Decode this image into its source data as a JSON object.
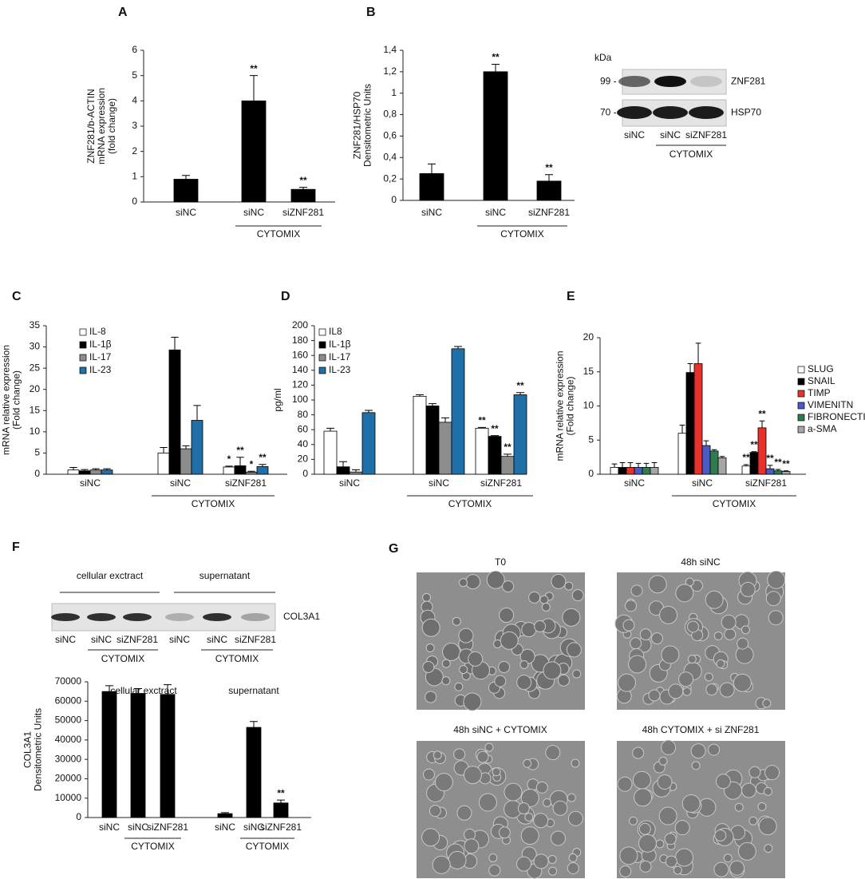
{
  "chart_data": [
    {
      "type": "bar",
      "panel": "A",
      "ylabel": [
        "ZNF281/b-ACTIN",
        "mRNA expression",
        "(fold change)"
      ],
      "categories": [
        "siNC",
        "siNC",
        "siZNF281"
      ],
      "values": [
        0.9,
        4.0,
        0.5
      ],
      "errors": [
        0.15,
        1.0,
        0.08
      ],
      "annotations": [
        null,
        "**",
        "**"
      ],
      "color": "#000000",
      "ylim": [
        0,
        6
      ],
      "yticks": [
        0,
        1,
        2,
        3,
        4,
        5,
        6
      ],
      "group_labels": [
        "CYTOMIX"
      ]
    },
    {
      "type": "bar",
      "panel": "B",
      "ylabel": [
        "ZNF281/HSP70",
        "Densitometric Units"
      ],
      "categories": [
        "siNC",
        "siNC",
        "siZNF281"
      ],
      "values": [
        0.25,
        1.2,
        0.18
      ],
      "errors": [
        0.09,
        0.07,
        0.06
      ],
      "annotations": [
        null,
        "**",
        "**"
      ],
      "color": "#000000",
      "ylim": [
        0,
        1.4
      ],
      "yticks": [
        0,
        {
          "value": 0.2,
          "label": "0,2"
        },
        {
          "value": 0.4,
          "label": "0,4"
        },
        {
          "value": 0.6,
          "label": "0,6"
        },
        {
          "value": 0.8,
          "label": "0,8"
        },
        1,
        {
          "value": 1.2,
          "label": "1,2"
        },
        {
          "value": 1.4,
          "label": "1,4"
        }
      ],
      "group_labels": [
        "CYTOMIX"
      ]
    },
    {
      "type": "grouped-bar",
      "panel": "C",
      "ylabel": [
        "mRNA relative expression",
        "(Fold change)"
      ],
      "categories": [
        "siNC",
        "siNC",
        "siZNF281"
      ],
      "series": [
        {
          "name": "IL-8",
          "color": "#ffffff",
          "values": [
            1,
            5,
            1.7
          ],
          "errors": [
            0.6,
            1.3,
            0.2
          ],
          "annotations": [
            null,
            null,
            "*"
          ]
        },
        {
          "name": "IL-1β",
          "color": "#000000",
          "values": [
            0.8,
            29.3,
            2
          ],
          "errors": [
            0.3,
            3,
            2
          ],
          "annotations": [
            null,
            null,
            "**"
          ]
        },
        {
          "name": "IL-17",
          "color": "#8c8c8c",
          "values": [
            1,
            6,
            0.5
          ],
          "errors": [
            0.3,
            0.7,
            0.2
          ],
          "annotations": [
            null,
            null,
            "*"
          ]
        },
        {
          "name": "IL-23",
          "color": "#1f6fa8",
          "values": [
            1,
            12.7,
            1.8
          ],
          "errors": [
            0.3,
            3.5,
            0.5
          ],
          "annotations": [
            null,
            null,
            "**"
          ]
        }
      ],
      "ylim": [
        0,
        35
      ],
      "yticks": [
        0,
        5,
        10,
        15,
        20,
        25,
        30,
        35
      ],
      "group_labels": [
        "CYTOMIX"
      ]
    },
    {
      "type": "grouped-bar",
      "panel": "D",
      "ylabel": [
        "pg/ml"
      ],
      "categories": [
        "siNC",
        "siNC",
        "siZNF281"
      ],
      "series": [
        {
          "name": "IL8",
          "color": "#ffffff",
          "values": [
            58,
            105,
            62
          ],
          "errors": [
            4,
            2,
            1
          ],
          "annotations": [
            null,
            null,
            "**"
          ]
        },
        {
          "name": "IL-1β",
          "color": "#000000",
          "values": [
            10,
            92,
            51
          ],
          "errors": [
            7,
            3,
            1
          ],
          "annotations": [
            null,
            null,
            "**"
          ]
        },
        {
          "name": "IL-17",
          "color": "#8c8c8c",
          "values": [
            3,
            70,
            24
          ],
          "errors": [
            3,
            6,
            3
          ],
          "annotations": [
            null,
            null,
            "**"
          ]
        },
        {
          "name": "IL-23",
          "color": "#1f6fa8",
          "values": [
            83,
            169,
            107
          ],
          "errors": [
            3,
            3,
            3
          ],
          "annotations": [
            null,
            null,
            "**"
          ]
        }
      ],
      "ylim": [
        0,
        200
      ],
      "yticks": [
        0,
        20,
        40,
        60,
        80,
        100,
        120,
        140,
        160,
        180,
        200
      ],
      "group_labels": [
        "CYTOMIX"
      ]
    },
    {
      "type": "grouped-bar",
      "panel": "E",
      "ylabel": [
        "mRNA relative expression",
        "(Fold change)"
      ],
      "categories": [
        "siNC",
        "siNC",
        "siZNF281"
      ],
      "series": [
        {
          "name": "SLUG",
          "color": "#ffffff",
          "values": [
            1,
            6,
            1.2
          ],
          "errors": [
            0.5,
            1.2,
            0.2
          ],
          "annotations": [
            null,
            null,
            "**"
          ]
        },
        {
          "name": "SNAIL",
          "color": "#000000",
          "values": [
            1,
            14.9,
            3.2
          ],
          "errors": [
            0.7,
            1.3,
            0.1
          ],
          "annotations": [
            null,
            null,
            "**"
          ]
        },
        {
          "name": "TIMP",
          "color": "#e8312a",
          "values": [
            1,
            16.2,
            6.8
          ],
          "errors": [
            0.7,
            3,
            1
          ],
          "annotations": [
            null,
            null,
            "**"
          ]
        },
        {
          "name": "VIMENITN",
          "color": "#4a5bc4",
          "values": [
            1,
            4.2,
            0.8
          ],
          "errors": [
            0.6,
            0.7,
            0.5
          ],
          "annotations": [
            null,
            null,
            "**"
          ]
        },
        {
          "name": "FIBRONECTIN",
          "color": "#2f7d4e",
          "values": [
            1,
            3.4,
            0.5
          ],
          "errors": [
            0.6,
            0.2,
            0.2
          ],
          "annotations": [
            null,
            null,
            "**"
          ]
        },
        {
          "name": "a-SMA",
          "color": "#a6a6a6",
          "values": [
            1,
            2.4,
            0.4
          ],
          "errors": [
            0.7,
            0.2,
            0.1
          ],
          "annotations": [
            null,
            null,
            "**"
          ]
        }
      ],
      "ylim": [
        0,
        20
      ],
      "yticks": [
        0,
        5,
        10,
        15,
        20
      ],
      "group_labels": [
        "CYTOMIX"
      ]
    },
    {
      "type": "bar",
      "ylabel": [
        "COL3A1",
        "Densitometric Units"
      ],
      "section_titles": [
        "cellular exctract",
        "supernatant"
      ],
      "categories": [
        "siNC",
        "siNC",
        "siZNF281",
        "siNC",
        "siNC",
        "siZNF281"
      ],
      "values": [
        65000,
        64000,
        63500,
        2000,
        46500,
        7500
      ],
      "errors": [
        3000,
        2500,
        5000,
        500,
        3000,
        1500
      ],
      "annotations": [
        null,
        null,
        null,
        null,
        null,
        "**"
      ],
      "color": "#000000",
      "ylim": [
        0,
        70000
      ],
      "yticks": [
        0,
        10000,
        20000,
        30000,
        40000,
        50000,
        60000,
        70000
      ],
      "group_labels": [
        "CYTOMIX",
        "CYTOMIX"
      ]
    }
  ],
  "blot_b": {
    "unit": "kDa",
    "markers": [
      "99 -",
      "70 -"
    ],
    "bands": [
      "ZNF281",
      "HSP70"
    ],
    "lanes": [
      "siNC",
      "siNC",
      "siZNF281"
    ],
    "group_label": "CYTOMIX"
  },
  "blot_f": {
    "panel": "F",
    "headers": [
      "cellular exctract",
      "supernatant"
    ],
    "band": "COL3A1",
    "lanes": [
      "siNC",
      "siNC",
      "siZNF281",
      "siNC",
      "siNC",
      "siZNF281"
    ],
    "group_labels": [
      "CYTOMIX",
      "CYTOMIX"
    ]
  },
  "images_g": {
    "panel": "G",
    "titles": [
      "T0",
      "48h siNC",
      "48h siNC + CYTOMIX",
      "48h CYTOMIX + si ZNF281"
    ]
  }
}
